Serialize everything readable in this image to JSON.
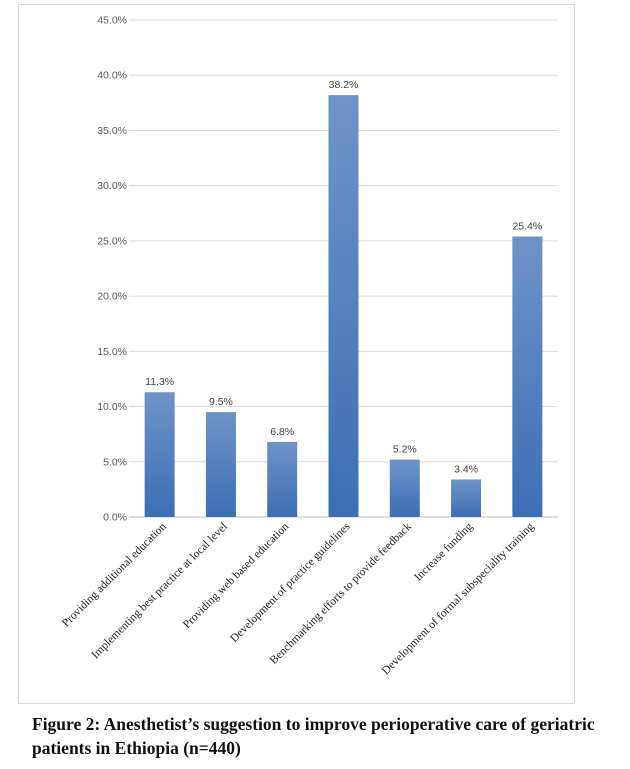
{
  "figure": {
    "caption": "Figure 2: Anesthetist’s suggestion to improve perioperative care of geriatric patients in Ethiopia (n=440)"
  },
  "colors": {
    "bar_top": "#6f93c8",
    "bar_bottom": "#3b6fb6",
    "grid": "#d9d9d9",
    "axis": "#bfbfbf"
  },
  "chart_data": {
    "type": "bar",
    "categories": [
      "Providing additional education",
      "Implementing best practice at local level",
      "Providing web based education",
      "Development of practice guidelines",
      "Benchmarking efforts to provide feedback",
      "Increase funding",
      "Development of formal subspeciality training"
    ],
    "values": [
      11.3,
      9.5,
      6.8,
      38.2,
      5.2,
      3.4,
      25.4
    ],
    "data_labels": [
      "11.3%",
      "9.5%",
      "6.8%",
      "38.2%",
      "5.2%",
      "3.4%",
      "25.4%"
    ],
    "ylim": [
      0,
      45
    ],
    "yticks": [
      0,
      5,
      10,
      15,
      20,
      25,
      30,
      35,
      40,
      45
    ],
    "ytick_labels": [
      "0.0%",
      "5.0%",
      "10.0%",
      "15.0%",
      "20.0%",
      "25.0%",
      "30.0%",
      "35.0%",
      "40.0%",
      "45.0%"
    ],
    "grid": true,
    "legend": "none"
  }
}
